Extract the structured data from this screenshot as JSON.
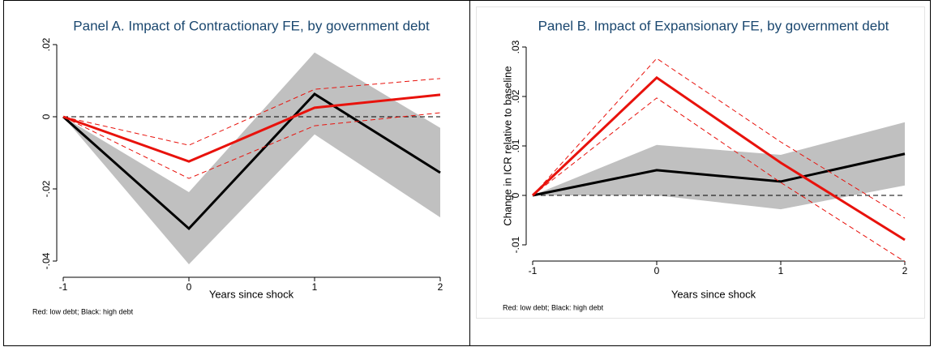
{
  "chart_data": [
    {
      "type": "line",
      "title": "Panel A. Impact of Contractionary FE, by government debt",
      "x_label": "Years since shock",
      "note": "Red: low debt; Black: high debt",
      "x": [
        -1,
        0,
        1,
        2
      ],
      "xlim": [
        -1,
        2
      ],
      "xticks": [
        -1,
        0,
        1,
        2
      ],
      "ylim": [
        -0.04,
        0.02
      ],
      "yticks": [
        {
          "value": -0.04,
          "label": "-.04"
        },
        {
          "value": -0.02,
          "label": "-.02"
        },
        0,
        {
          "value": 0.02,
          "label": ".02"
        }
      ],
      "yline": 0,
      "series": [
        {
          "color": "#000000",
          "ci_style": "band",
          "ci_color": "#c0c0c0",
          "values": [
            0,
            -0.031,
            0.0063,
            -0.0155
          ],
          "ci_lower": [
            0,
            -0.0409,
            -0.0049,
            -0.0279
          ],
          "ci_upper": [
            0,
            -0.0209,
            0.0178,
            -0.0031
          ]
        },
        {
          "color": "#e8120c",
          "ci_style": "dashed",
          "ci_color": "#e8120c",
          "values": [
            0,
            -0.0124,
            0.0025,
            0.0061
          ],
          "ci_lower": [
            0,
            -0.0171,
            -0.0025,
            0.0011
          ],
          "ci_upper": [
            0,
            -0.0079,
            0.0076,
            0.0106
          ]
        }
      ]
    },
    {
      "type": "line",
      "title": "Panel B. Impact of Expansionary FE, by government debt",
      "x_label": "Years since shock",
      "y_label": "Change in ICR relative to baseline",
      "note": "Red: low debt; Black: high debt",
      "x": [
        -1,
        0,
        1,
        2
      ],
      "xlim": [
        -1,
        2
      ],
      "xticks": [
        -1,
        0,
        1,
        2
      ],
      "ylim": [
        -0.01,
        0.03
      ],
      "yticks": [
        {
          "value": -0.01,
          "label": "-.01"
        },
        0,
        {
          "value": 0.01,
          "label": ".01"
        },
        {
          "value": 0.02,
          "label": ".02"
        },
        {
          "value": 0.03,
          "label": ".03"
        }
      ],
      "yline": 0,
      "series": [
        {
          "color": "#000000",
          "ci_style": "band",
          "ci_color": "#c0c0c0",
          "values": [
            0,
            0.0051,
            0.0028,
            0.0084
          ],
          "ci_lower": [
            0,
            0,
            -0.0028,
            0.002
          ],
          "ci_upper": [
            0,
            0.0102,
            0.0082,
            0.0148
          ]
        },
        {
          "color": "#e8120c",
          "ci_style": "dashed",
          "ci_color": "#e8120c",
          "values": [
            0,
            0.0238,
            0.0066,
            -0.009
          ],
          "ci_lower": [
            0,
            0.0197,
            0.0026,
            -0.0134
          ],
          "ci_upper": [
            0,
            0.0277,
            0.0108,
            -0.0046
          ]
        }
      ]
    }
  ]
}
